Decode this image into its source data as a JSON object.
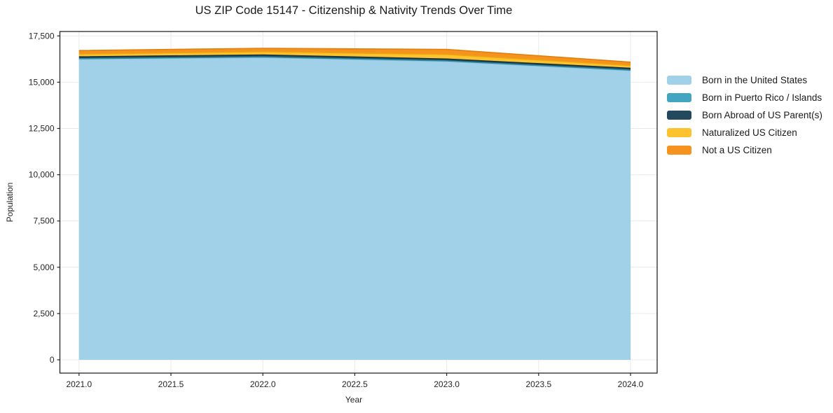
{
  "title": "US ZIP Code 15147 - Citizenship & Nativity Trends Over Time",
  "chart_data": {
    "type": "area",
    "stacked": true,
    "title": "US ZIP Code 15147 - Citizenship & Nativity Trends Over Time",
    "xlabel": "Year",
    "ylabel": "Population",
    "x": [
      2021,
      2022,
      2023,
      2024
    ],
    "series": [
      {
        "name": "Born in the United States",
        "color": "#a0d1e8",
        "edge": "#8ec2dc",
        "values": [
          16240,
          16330,
          16120,
          15620
        ]
      },
      {
        "name": "Born in Puerto Rico / Islands",
        "color": "#44a5c0",
        "edge": "#2e8ca6",
        "values": [
          30,
          30,
          30,
          30
        ]
      },
      {
        "name": "Born Abroad of US Parent(s)",
        "color": "#234a5c",
        "edge": "#16333f",
        "values": [
          100,
          110,
          100,
          100
        ]
      },
      {
        "name": "Naturalized US Citizen",
        "color": "#fcc32f",
        "edge": "#eda411",
        "values": [
          150,
          180,
          250,
          150
        ]
      },
      {
        "name": "Not a US Citizen",
        "color": "#f6921e",
        "edge": "#e2800f",
        "values": [
          190,
          180,
          270,
          180
        ]
      }
    ],
    "x_ticks": [
      "2021.0",
      "2021.5",
      "2022.0",
      "2022.5",
      "2023.0",
      "2023.5",
      "2024.0"
    ],
    "x_tick_values": [
      2021,
      2021.5,
      2022,
      2022.5,
      2023,
      2023.5,
      2024
    ],
    "y_ticks": [
      "0",
      "2,500",
      "5,000",
      "7,500",
      "10,000",
      "12,500",
      "15,000",
      "17,500"
    ],
    "y_tick_values": [
      0,
      2500,
      5000,
      7500,
      10000,
      12500,
      15000,
      17500
    ],
    "xlim": [
      2020.896,
      2024.145
    ],
    "ylim": [
      -719,
      17738
    ],
    "grid": true,
    "grid_color": "#e9e9e9",
    "axis_color": "#262626",
    "legend_position": "right"
  }
}
